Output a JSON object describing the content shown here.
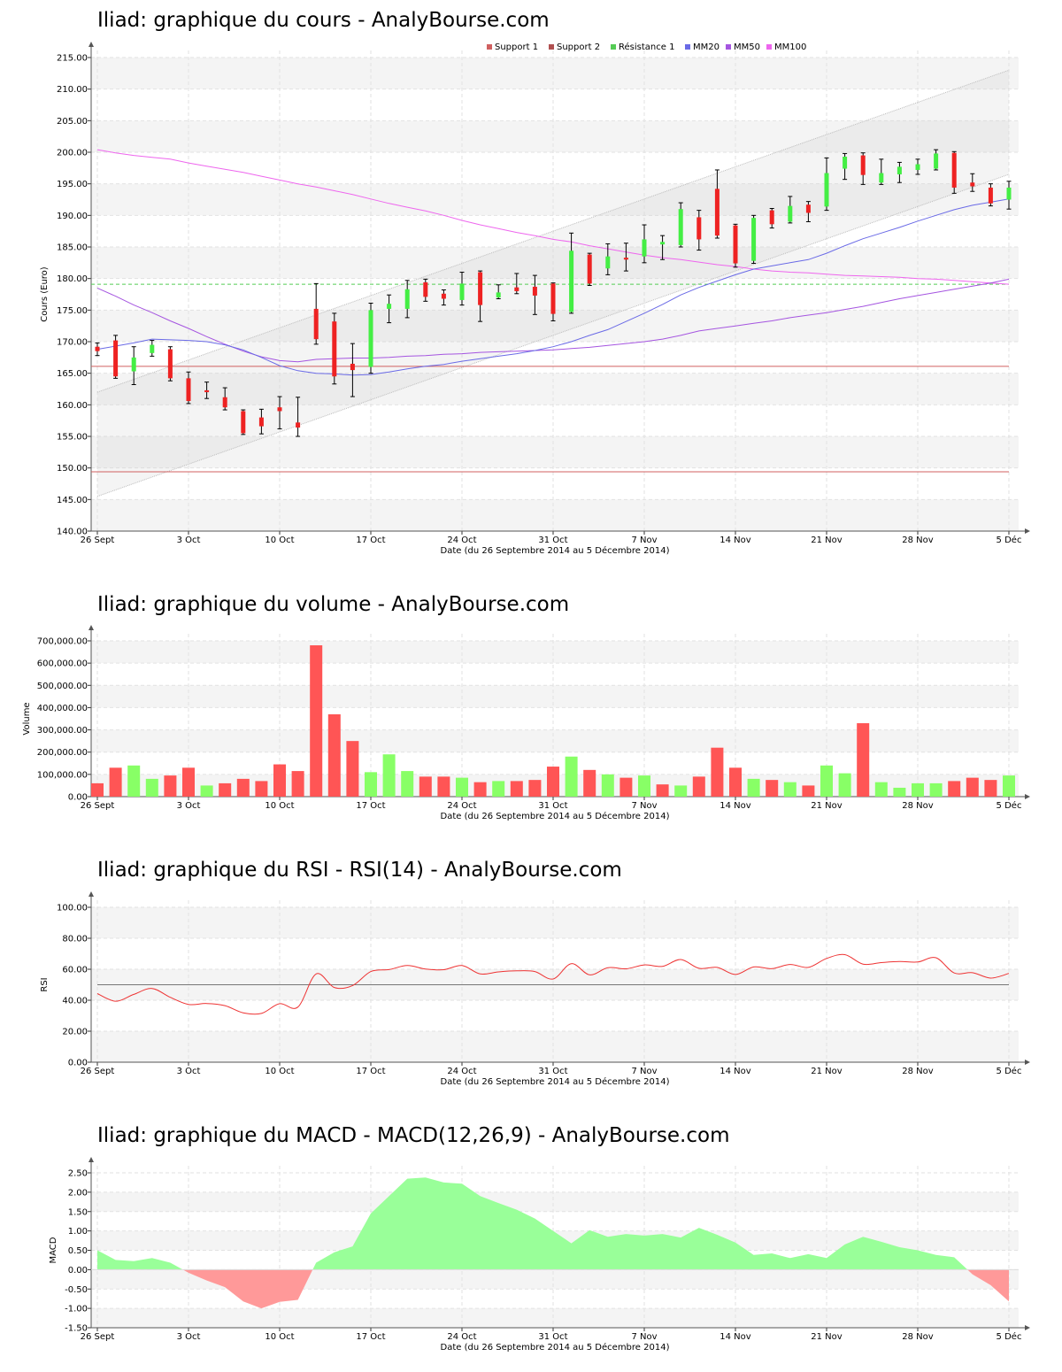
{
  "x_labels": [
    "26 Sept",
    "3 Oct",
    "10 Oct",
    "17 Oct",
    "24 Oct",
    "31 Oct",
    "7 Nov",
    "14 Nov",
    "21 Nov",
    "28 Nov",
    "5 Déc"
  ],
  "x_axis_title": "Date (du 26 Septembre 2014 au 5 Décembre 2014)",
  "colors": {
    "up": "#44ee44",
    "down": "#ee2222",
    "vol_up": "#88ff66",
    "vol_down": "#ff5555",
    "mm20": "#6a6ae6",
    "mm50": "#a555e0",
    "mm100": "#ee66ee",
    "support": "#d06060",
    "resistance": "#55cc55",
    "rsi": "#ee3333",
    "macd_pos": "#99ff99",
    "macd_neg": "#ff9999"
  },
  "charts": {
    "price": {
      "title": "Iliad: graphique du cours - AnalyBourse.com",
      "ylabel": "Cours (Euro)",
      "legend": [
        "Support 1",
        "Support 2",
        "Résistance 1",
        "MM20",
        "MM50",
        "MM100"
      ]
    },
    "volume": {
      "title": "Iliad: graphique du volume - AnalyBourse.com",
      "ylabel": "Volume"
    },
    "rsi": {
      "title": "Iliad: graphique du RSI - RSI(14) - AnalyBourse.com",
      "ylabel": "RSI"
    },
    "macd": {
      "title": "Iliad: graphique du MACD - MACD(12,26,9) - AnalyBourse.com",
      "ylabel": "MACD"
    }
  },
  "chart_data": [
    {
      "type": "candlestick",
      "title": "Iliad: graphique du cours - AnalyBourse.com",
      "ylabel": "Cours (Euro)",
      "xlabel": "Date (du 26 Septembre 2014 au 5 Décembre 2014)",
      "ylim": [
        140,
        215
      ],
      "yticks": [
        "140.00",
        "145.00",
        "150.00",
        "155.00",
        "160.00",
        "165.00",
        "170.00",
        "175.00",
        "180.00",
        "185.00",
        "190.00",
        "195.00",
        "200.00",
        "205.00",
        "210.00",
        "215.00"
      ],
      "candles": [
        {
          "o": 169.2,
          "h": 169.8,
          "l": 167.8,
          "c": 168.5
        },
        {
          "o": 170.2,
          "h": 171.0,
          "l": 164.2,
          "c": 164.5
        },
        {
          "o": 165.3,
          "h": 169.2,
          "l": 163.2,
          "c": 167.5
        },
        {
          "o": 168.2,
          "h": 170.2,
          "l": 167.7,
          "c": 169.5
        },
        {
          "o": 168.8,
          "h": 169.2,
          "l": 163.8,
          "c": 164.2
        },
        {
          "o": 164.2,
          "h": 165.2,
          "l": 160.2,
          "c": 160.6
        },
        {
          "o": 162.3,
          "h": 163.6,
          "l": 161.0,
          "c": 162.0
        },
        {
          "o": 161.2,
          "h": 162.7,
          "l": 159.2,
          "c": 159.6
        },
        {
          "o": 159.0,
          "h": 159.2,
          "l": 155.3,
          "c": 155.5
        },
        {
          "o": 158.0,
          "h": 159.3,
          "l": 155.4,
          "c": 156.6
        },
        {
          "o": 159.6,
          "h": 161.3,
          "l": 156.2,
          "c": 159.0
        },
        {
          "o": 157.2,
          "h": 161.2,
          "l": 155.0,
          "c": 156.4
        },
        {
          "o": 175.2,
          "h": 179.2,
          "l": 169.6,
          "c": 170.4
        },
        {
          "o": 173.2,
          "h": 174.5,
          "l": 163.3,
          "c": 164.5
        },
        {
          "o": 166.5,
          "h": 169.7,
          "l": 161.3,
          "c": 165.5
        },
        {
          "o": 166.0,
          "h": 176.1,
          "l": 165.0,
          "c": 175.0
        },
        {
          "o": 175.2,
          "h": 177.4,
          "l": 173.0,
          "c": 176.0
        },
        {
          "o": 175.2,
          "h": 179.7,
          "l": 173.8,
          "c": 178.3
        },
        {
          "o": 179.4,
          "h": 179.9,
          "l": 176.4,
          "c": 177.1
        },
        {
          "o": 177.6,
          "h": 178.2,
          "l": 175.8,
          "c": 176.8
        },
        {
          "o": 176.6,
          "h": 181.0,
          "l": 175.8,
          "c": 179.2
        },
        {
          "o": 181.0,
          "h": 181.2,
          "l": 173.2,
          "c": 175.8
        },
        {
          "o": 177.0,
          "h": 179.0,
          "l": 176.8,
          "c": 177.8
        },
        {
          "o": 178.6,
          "h": 180.8,
          "l": 177.6,
          "c": 178.0
        },
        {
          "o": 178.7,
          "h": 180.5,
          "l": 174.3,
          "c": 177.3
        },
        {
          "o": 179.2,
          "h": 179.3,
          "l": 173.3,
          "c": 174.4
        },
        {
          "o": 174.7,
          "h": 187.2,
          "l": 174.5,
          "c": 184.4
        },
        {
          "o": 183.8,
          "h": 184.0,
          "l": 178.9,
          "c": 179.2
        },
        {
          "o": 181.6,
          "h": 185.5,
          "l": 180.6,
          "c": 183.5
        },
        {
          "o": 183.3,
          "h": 185.6,
          "l": 181.2,
          "c": 183.0
        },
        {
          "o": 183.5,
          "h": 188.5,
          "l": 182.5,
          "c": 186.2
        },
        {
          "o": 185.4,
          "h": 186.8,
          "l": 183.0,
          "c": 185.8
        },
        {
          "o": 185.3,
          "h": 192.0,
          "l": 185.0,
          "c": 191.0
        },
        {
          "o": 189.7,
          "h": 190.8,
          "l": 184.5,
          "c": 186.2
        },
        {
          "o": 194.2,
          "h": 197.2,
          "l": 186.4,
          "c": 186.8
        },
        {
          "o": 188.4,
          "h": 188.6,
          "l": 181.8,
          "c": 182.4
        },
        {
          "o": 182.8,
          "h": 190.0,
          "l": 182.4,
          "c": 189.6
        },
        {
          "o": 190.8,
          "h": 191.1,
          "l": 188.0,
          "c": 188.6
        },
        {
          "o": 189.0,
          "h": 193.0,
          "l": 188.8,
          "c": 191.5
        },
        {
          "o": 191.7,
          "h": 192.2,
          "l": 189.0,
          "c": 190.4
        },
        {
          "o": 191.4,
          "h": 199.1,
          "l": 190.8,
          "c": 196.7
        },
        {
          "o": 197.4,
          "h": 199.8,
          "l": 195.7,
          "c": 199.3
        },
        {
          "o": 199.5,
          "h": 199.9,
          "l": 194.9,
          "c": 196.4
        },
        {
          "o": 195.2,
          "h": 198.9,
          "l": 194.9,
          "c": 196.7
        },
        {
          "o": 196.5,
          "h": 198.4,
          "l": 195.2,
          "c": 197.7
        },
        {
          "o": 197.2,
          "h": 198.9,
          "l": 196.5,
          "c": 198.1
        },
        {
          "o": 197.4,
          "h": 200.4,
          "l": 197.2,
          "c": 199.8
        },
        {
          "o": 199.9,
          "h": 200.1,
          "l": 193.5,
          "c": 194.4
        },
        {
          "o": 195.2,
          "h": 196.6,
          "l": 193.8,
          "c": 194.6
        },
        {
          "o": 194.4,
          "h": 195.0,
          "l": 191.5,
          "c": 191.9
        },
        {
          "o": 192.5,
          "h": 195.4,
          "l": 191.0,
          "c": 194.4
        }
      ],
      "series": [
        {
          "name": "MM20",
          "values": [
            168.8,
            169.3,
            169.8,
            170.4,
            170.3,
            170.2,
            170.0,
            169.5,
            168.7,
            167.5,
            166.2,
            165.4,
            165.0,
            164.9,
            164.7,
            164.8,
            165.2,
            165.7,
            166.1,
            166.4,
            166.9,
            167.3,
            167.7,
            168.1,
            168.6,
            169.2,
            170.0,
            171.0,
            171.9,
            173.2,
            174.5,
            175.9,
            177.4,
            178.6,
            179.6,
            180.6,
            181.5,
            182.0,
            182.5,
            183.0,
            184.0,
            185.2,
            186.3,
            187.2,
            188.1,
            189.1,
            190.0,
            190.9,
            191.6,
            192.1,
            192.6
          ]
        },
        {
          "name": "MM50",
          "values": [
            178.5,
            177.2,
            175.8,
            174.6,
            173.3,
            172.1,
            170.8,
            169.6,
            168.5,
            167.6,
            167.0,
            166.8,
            167.2,
            167.3,
            167.4,
            167.4,
            167.5,
            167.7,
            167.8,
            168.0,
            168.1,
            168.3,
            168.4,
            168.5,
            168.6,
            168.7,
            168.9,
            169.1,
            169.4,
            169.7,
            170.0,
            170.4,
            171.0,
            171.7,
            172.1,
            172.5,
            172.9,
            173.3,
            173.8,
            174.2,
            174.6,
            175.1,
            175.6,
            176.2,
            176.8,
            177.3,
            177.8,
            178.3,
            178.8,
            179.3,
            179.9
          ]
        },
        {
          "name": "MM100",
          "values": [
            200.4,
            199.9,
            199.5,
            199.2,
            198.9,
            198.3,
            197.8,
            197.3,
            196.8,
            196.2,
            195.6,
            195.0,
            194.5,
            193.9,
            193.3,
            192.6,
            191.9,
            191.3,
            190.7,
            190.0,
            189.2,
            188.5,
            187.9,
            187.3,
            186.8,
            186.2,
            185.8,
            185.2,
            184.7,
            184.2,
            183.7,
            183.3,
            183.0,
            182.6,
            182.2,
            181.9,
            181.5,
            181.2,
            181.0,
            180.9,
            180.7,
            180.5,
            180.4,
            180.3,
            180.2,
            180.0,
            179.9,
            179.7,
            179.5,
            179.3,
            179.1
          ]
        },
        {
          "name": "Support 1",
          "values": [
            166.1
          ]
        },
        {
          "name": "Support 2",
          "values": [
            149.4
          ]
        },
        {
          "name": "Résistance 1",
          "values": [
            179.1
          ]
        }
      ]
    },
    {
      "type": "bar",
      "title": "Iliad: graphique du volume - AnalyBourse.com",
      "ylabel": "Volume",
      "xlabel": "Date (du 26 Septembre 2014 au 5 Décembre 2014)",
      "ylim": [
        0,
        700000
      ],
      "yticks": [
        "0.00",
        "100,000.00",
        "200,000.00",
        "300,000.00",
        "400,000.00",
        "500,000.00",
        "600,000.00",
        "700,000.00"
      ],
      "values": [
        60000,
        130000,
        140000,
        80000,
        95000,
        130000,
        50000,
        60000,
        80000,
        70000,
        145000,
        115000,
        680000,
        370000,
        250000,
        110000,
        190000,
        115000,
        90000,
        90000,
        85000,
        65000,
        70000,
        70000,
        75000,
        135000,
        180000,
        120000,
        100000,
        85000,
        95000,
        55000,
        50000,
        90000,
        220000,
        130000,
        80000,
        75000,
        65000,
        50000,
        140000,
        105000,
        330000,
        65000,
        40000,
        60000,
        60000,
        70000,
        85000,
        75000,
        95000
      ],
      "directions": [
        "d",
        "d",
        "u",
        "u",
        "d",
        "d",
        "u",
        "d",
        "d",
        "d",
        "d",
        "d",
        "d",
        "d",
        "d",
        "u",
        "u",
        "u",
        "d",
        "d",
        "u",
        "d",
        "u",
        "d",
        "d",
        "d",
        "u",
        "d",
        "u",
        "d",
        "u",
        "d",
        "u",
        "d",
        "d",
        "d",
        "u",
        "d",
        "u",
        "d",
        "u",
        "u",
        "d",
        "u",
        "u",
        "u",
        "u",
        "d",
        "d",
        "d",
        "u"
      ]
    },
    {
      "type": "line",
      "title": "Iliad: graphique du RSI - RSI(14) - AnalyBourse.com",
      "ylabel": "RSI",
      "xlabel": "Date (du 26 Septembre 2014 au 5 Décembre 2014)",
      "ylim": [
        0,
        100
      ],
      "yticks": [
        "0.00",
        "20.00",
        "40.00",
        "60.00",
        "80.00",
        "100.00"
      ],
      "reference": 50,
      "series": [
        {
          "name": "RSI(14)",
          "values": [
            44.3,
            39.4,
            43.8,
            47.6,
            41.9,
            37.3,
            37.9,
            36.5,
            31.9,
            31.5,
            37.8,
            35.6,
            57.0,
            48.2,
            49.5,
            58.5,
            59.8,
            62.4,
            60.2,
            59.7,
            62.4,
            57.0,
            58.3,
            59.0,
            58.5,
            53.7,
            63.6,
            56.4,
            61.0,
            60.3,
            62.8,
            61.9,
            66.3,
            60.6,
            61.2,
            56.6,
            61.5,
            60.4,
            63.1,
            61.2,
            67.0,
            69.4,
            63.3,
            64.3,
            65.0,
            64.7,
            67.4,
            57.6,
            57.8,
            54.3,
            57.3
          ]
        }
      ]
    },
    {
      "type": "area",
      "title": "Iliad: graphique du MACD - MACD(12,26,9) - AnalyBourse.com",
      "ylabel": "MACD",
      "xlabel": "Date (du 26 Septembre 2014 au 5 Décembre 2014)",
      "ylim": [
        -1.5,
        2.5
      ],
      "yticks": [
        "-1.50",
        "-1.00",
        "-0.50",
        "0.00",
        "0.50",
        "1.00",
        "1.50",
        "2.00",
        "2.50"
      ],
      "series": [
        {
          "name": "MACD(12,26,9)",
          "values": [
            0.5,
            0.25,
            0.22,
            0.3,
            0.18,
            -0.08,
            -0.28,
            -0.45,
            -0.82,
            -1.0,
            -0.83,
            -0.78,
            0.18,
            0.45,
            0.6,
            1.45,
            1.9,
            2.35,
            2.38,
            2.25,
            2.22,
            1.9,
            1.72,
            1.55,
            1.32,
            1.0,
            0.68,
            1.02,
            0.85,
            0.92,
            0.88,
            0.92,
            0.83,
            1.08,
            0.9,
            0.7,
            0.38,
            0.42,
            0.3,
            0.4,
            0.3,
            0.65,
            0.85,
            0.72,
            0.58,
            0.5,
            0.38,
            0.32,
            -0.12,
            -0.4,
            -0.82
          ]
        }
      ]
    }
  ]
}
